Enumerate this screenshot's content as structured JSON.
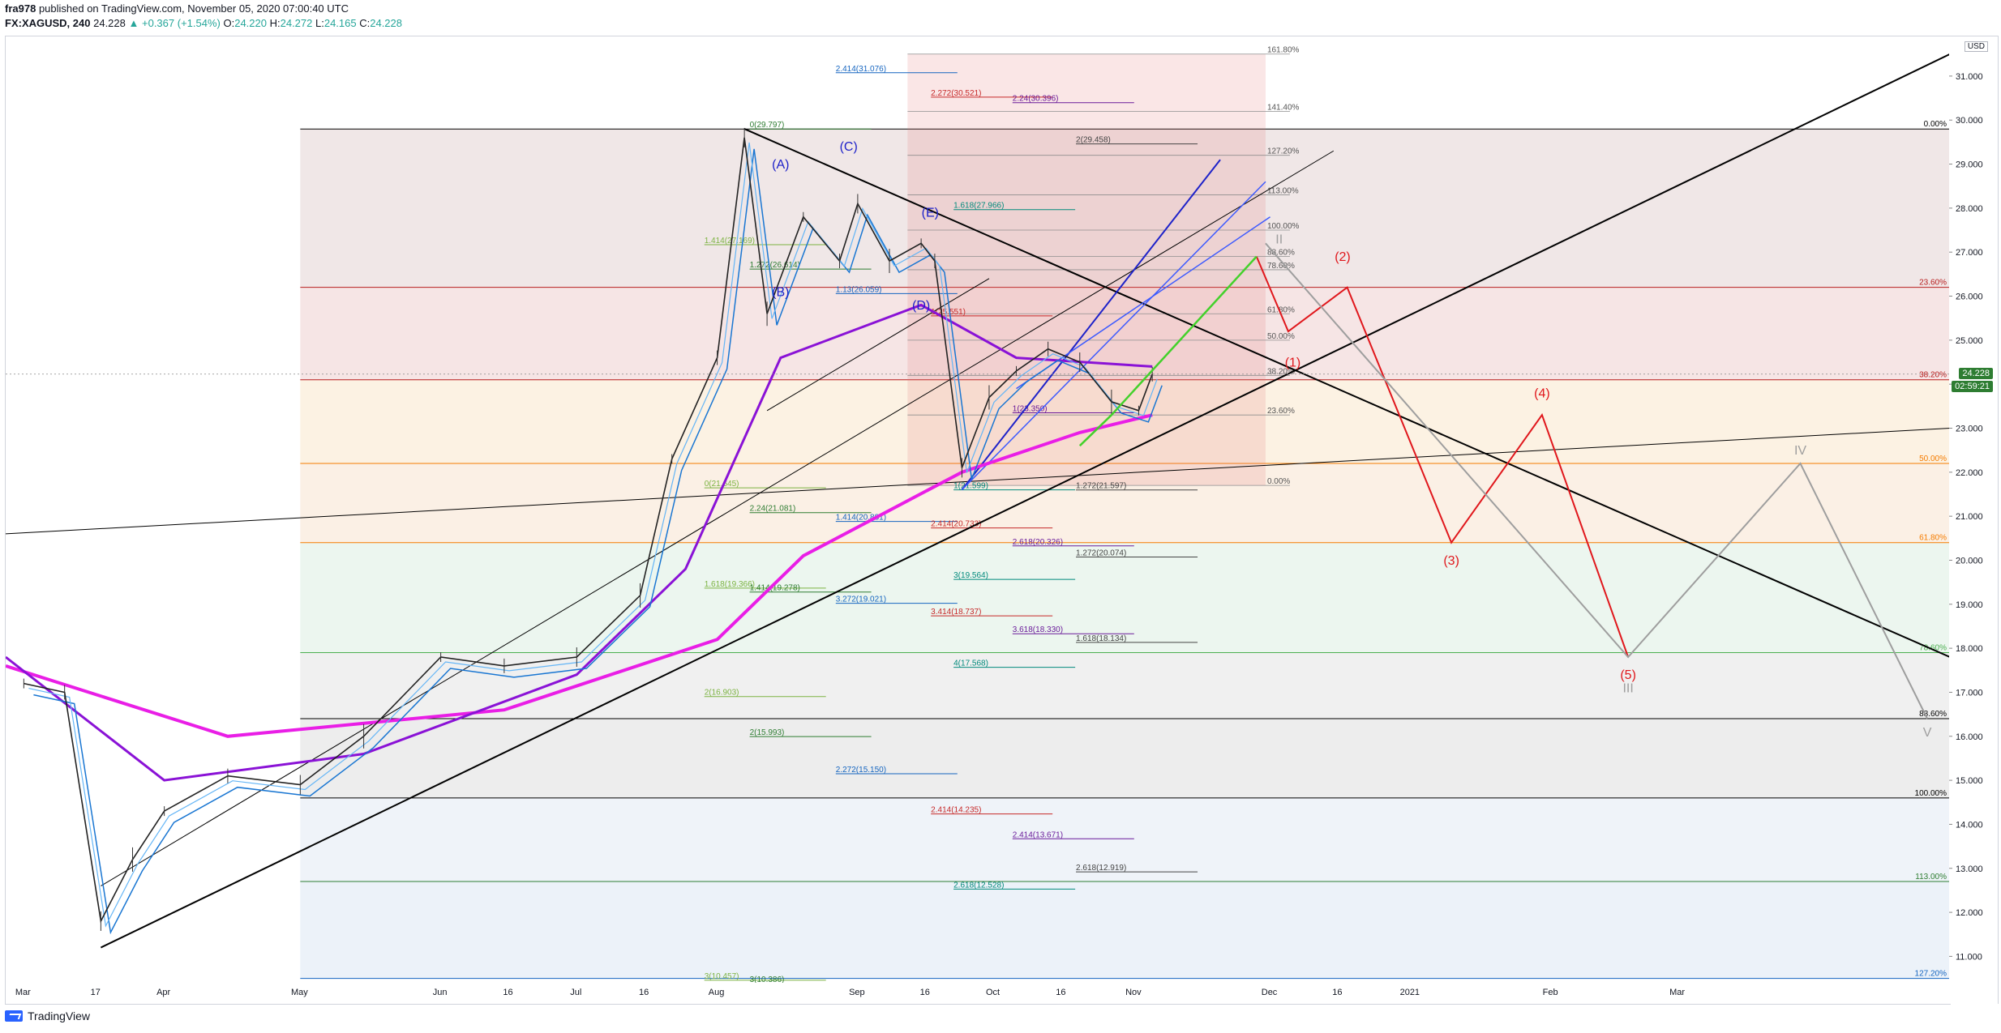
{
  "header": {
    "author": "fra978",
    "published": "published on TradingView.com, November 05, 2020 07:00:40 UTC",
    "symbol": "FX:XAGUSD, 240",
    "last": "24.228",
    "change": "+0.367 (+1.54%)",
    "open_label": "O:",
    "open": "24.220",
    "high_label": "H:",
    "high": "24.272",
    "low_label": "L:",
    "low": "24.165",
    "close_label": "C:",
    "close": "24.228"
  },
  "currency_badge": "USD",
  "current_price_tag": "24.228",
  "countdown_tag": "02:59:21",
  "footer": {
    "brand": "TradingView"
  },
  "colors": {
    "wave_red": "#e0171c",
    "wave_gray": "#9e9e9e",
    "wave_blue": "#1e22c9",
    "ma_magenta": "#e91ee6",
    "ma_purple": "#8a12d6",
    "ma_blue": "#1976d2",
    "ma_lightblue": "#64b5f6",
    "price_tag": "#2e7d32"
  },
  "chart_data": {
    "type": "line",
    "title": "",
    "xlabel": "",
    "ylabel": "",
    "ylim": [
      10.4,
      31.9
    ],
    "y_ticks": [
      "31.000",
      "30.000",
      "29.000",
      "28.000",
      "27.000",
      "26.000",
      "25.000",
      "24.000",
      "23.000",
      "22.000",
      "21.000",
      "20.000",
      "19.000",
      "18.000",
      "17.000",
      "16.000",
      "15.000",
      "14.000",
      "13.000",
      "12.000",
      "11.000"
    ],
    "x_ticks": [
      "Mar",
      "17",
      "Apr",
      "May",
      "Jun",
      "16",
      "Jul",
      "16",
      "Aug",
      "Sep",
      "16",
      "Oct",
      "16",
      "Nov",
      "Dec",
      "16",
      "2021",
      "Feb",
      "Mar"
    ],
    "series": [
      {
        "x": [
          "2020-03-01",
          "2020-03-10",
          "2020-03-18",
          "2020-03-25",
          "2020-04-01",
          "2020-04-15",
          "2020-05-01",
          "2020-05-15",
          "2020-06-01",
          "2020-06-15",
          "2020-07-01",
          "2020-07-15",
          "2020-07-22",
          "2020-08-01",
          "2020-08-07",
          "2020-08-12",
          "2020-08-20",
          "2020-08-28",
          "2020-09-01",
          "2020-09-08",
          "2020-09-15",
          "2020-09-18",
          "2020-09-24",
          "2020-09-30",
          "2020-10-06",
          "2020-10-13",
          "2020-10-20",
          "2020-10-27",
          "2020-11-02",
          "2020-11-05"
        ],
        "values": [
          17.2,
          17.0,
          11.8,
          13.2,
          14.3,
          15.1,
          14.9,
          16.0,
          17.8,
          17.6,
          17.8,
          19.2,
          22.3,
          24.6,
          29.6,
          25.6,
          27.8,
          26.8,
          28.1,
          26.8,
          27.2,
          26.8,
          22.1,
          23.7,
          24.3,
          24.8,
          24.5,
          23.6,
          23.4,
          24.228
        ]
      }
    ],
    "fib_levels_right": [
      {
        "label": "0.00%",
        "price": 29.797
      },
      {
        "label": "23.60%",
        "price": 26.2
      },
      {
        "label": "38.20%",
        "price": 24.1
      },
      {
        "label": "50.00%",
        "price": 22.2
      },
      {
        "label": "61.80%",
        "price": 20.4
      },
      {
        "label": "78.60%",
        "price": 17.9
      },
      {
        "label": "88.60%",
        "price": 16.4
      },
      {
        "label": "100.00%",
        "price": 14.6
      },
      {
        "label": "113.00%",
        "price": 12.7
      },
      {
        "label": "127.20%",
        "price": 10.5
      }
    ],
    "fib_levels_box": [
      {
        "label": "161.80%",
        "price": 31.5
      },
      {
        "label": "141.40%",
        "price": 30.2
      },
      {
        "label": "127.20%",
        "price": 29.2
      },
      {
        "label": "113.00%",
        "price": 28.3
      },
      {
        "label": "100.00%",
        "price": 27.5
      },
      {
        "label": "88.60%",
        "price": 26.9
      },
      {
        "label": "78.60%",
        "price": 26.6
      },
      {
        "label": "61.80%",
        "price": 25.6
      },
      {
        "label": "50.00%",
        "price": 25.0
      },
      {
        "label": "38.20%",
        "price": 24.2
      },
      {
        "label": "23.60%",
        "price": 23.3
      },
      {
        "label": "0.00%",
        "price": 21.7
      }
    ],
    "ext_labels": [
      {
        "label": "0(29.797)",
        "price": 29.797
      },
      {
        "label": "2.414(31.076)",
        "price": 31.076
      },
      {
        "label": "2.272(30.521)",
        "price": 30.521
      },
      {
        "label": "2.24(30.396)",
        "price": 30.396
      },
      {
        "label": "2(29.458)",
        "price": 29.458
      },
      {
        "label": "1.618(27.966)",
        "price": 27.966
      },
      {
        "label": "1.414(27.169)",
        "price": 27.169
      },
      {
        "label": "1.272(26.614)",
        "price": 26.614
      },
      {
        "label": "1.13(26.059)",
        "price": 26.059
      },
      {
        "label": "1(25.551)",
        "price": 25.551
      },
      {
        "label": "1(23.350)",
        "price": 23.35
      },
      {
        "label": "1.272(21.597)",
        "price": 21.597
      },
      {
        "label": "1(21.599)",
        "price": 21.599
      },
      {
        "label": "0(21.645)",
        "price": 21.645
      },
      {
        "label": "2.24(21.081)",
        "price": 21.081
      },
      {
        "label": "1.414(20.881)",
        "price": 20.881
      },
      {
        "label": "2.414(20.733)",
        "price": 20.733
      },
      {
        "label": "2.618(20.326)",
        "price": 20.326
      },
      {
        "label": "1.272(20.074)",
        "price": 20.074
      },
      {
        "label": "3(19.564)",
        "price": 19.564
      },
      {
        "label": "1.618(19.366)",
        "price": 19.366
      },
      {
        "label": "1.414(19.278)",
        "price": 19.278
      },
      {
        "label": "3.272(19.021)",
        "price": 19.021
      },
      {
        "label": "3.414(18.737)",
        "price": 18.737
      },
      {
        "label": "3.618(18.330)",
        "price": 18.33
      },
      {
        "label": "1.618(18.134)",
        "price": 18.134
      },
      {
        "label": "4(17.568)",
        "price": 17.568
      },
      {
        "label": "2(16.903)",
        "price": 16.903
      },
      {
        "label": "2(15.993)",
        "price": 15.993
      },
      {
        "label": "2.272(15.150)",
        "price": 15.15
      },
      {
        "label": "2.414(14.235)",
        "price": 14.235
      },
      {
        "label": "2.414(13.671)",
        "price": 13.671
      },
      {
        "label": "2.618(12.919)",
        "price": 12.919
      },
      {
        "label": "2.618(12.528)",
        "price": 12.528
      },
      {
        "label": "3(10.457)",
        "price": 10.457
      },
      {
        "label": "3(10.386)",
        "price": 10.386
      }
    ],
    "wave_labels_blue": [
      "(A)",
      "(B)",
      "(C)",
      "(D)",
      "(E)"
    ],
    "wave_labels_red": [
      "(1)",
      "(2)",
      "(3)",
      "(4)",
      "(5)"
    ],
    "wave_labels_gray": [
      "II",
      "III",
      "IV",
      "V"
    ],
    "projection_red": [
      [
        "2020-11-28",
        26.9
      ],
      [
        "2020-12-05",
        25.2
      ],
      [
        "2020-12-18",
        26.2
      ],
      [
        "2021-01-10",
        20.4
      ],
      [
        "2021-01-30",
        23.3
      ],
      [
        "2021-02-18",
        17.8
      ]
    ],
    "projection_gray": [
      [
        "2020-11-30",
        27.2
      ],
      [
        "2021-02-18",
        17.8
      ],
      [
        "2021-03-28",
        22.2
      ],
      [
        "2021-04-25",
        16.4
      ]
    ],
    "grid": false,
    "legend": "none"
  }
}
